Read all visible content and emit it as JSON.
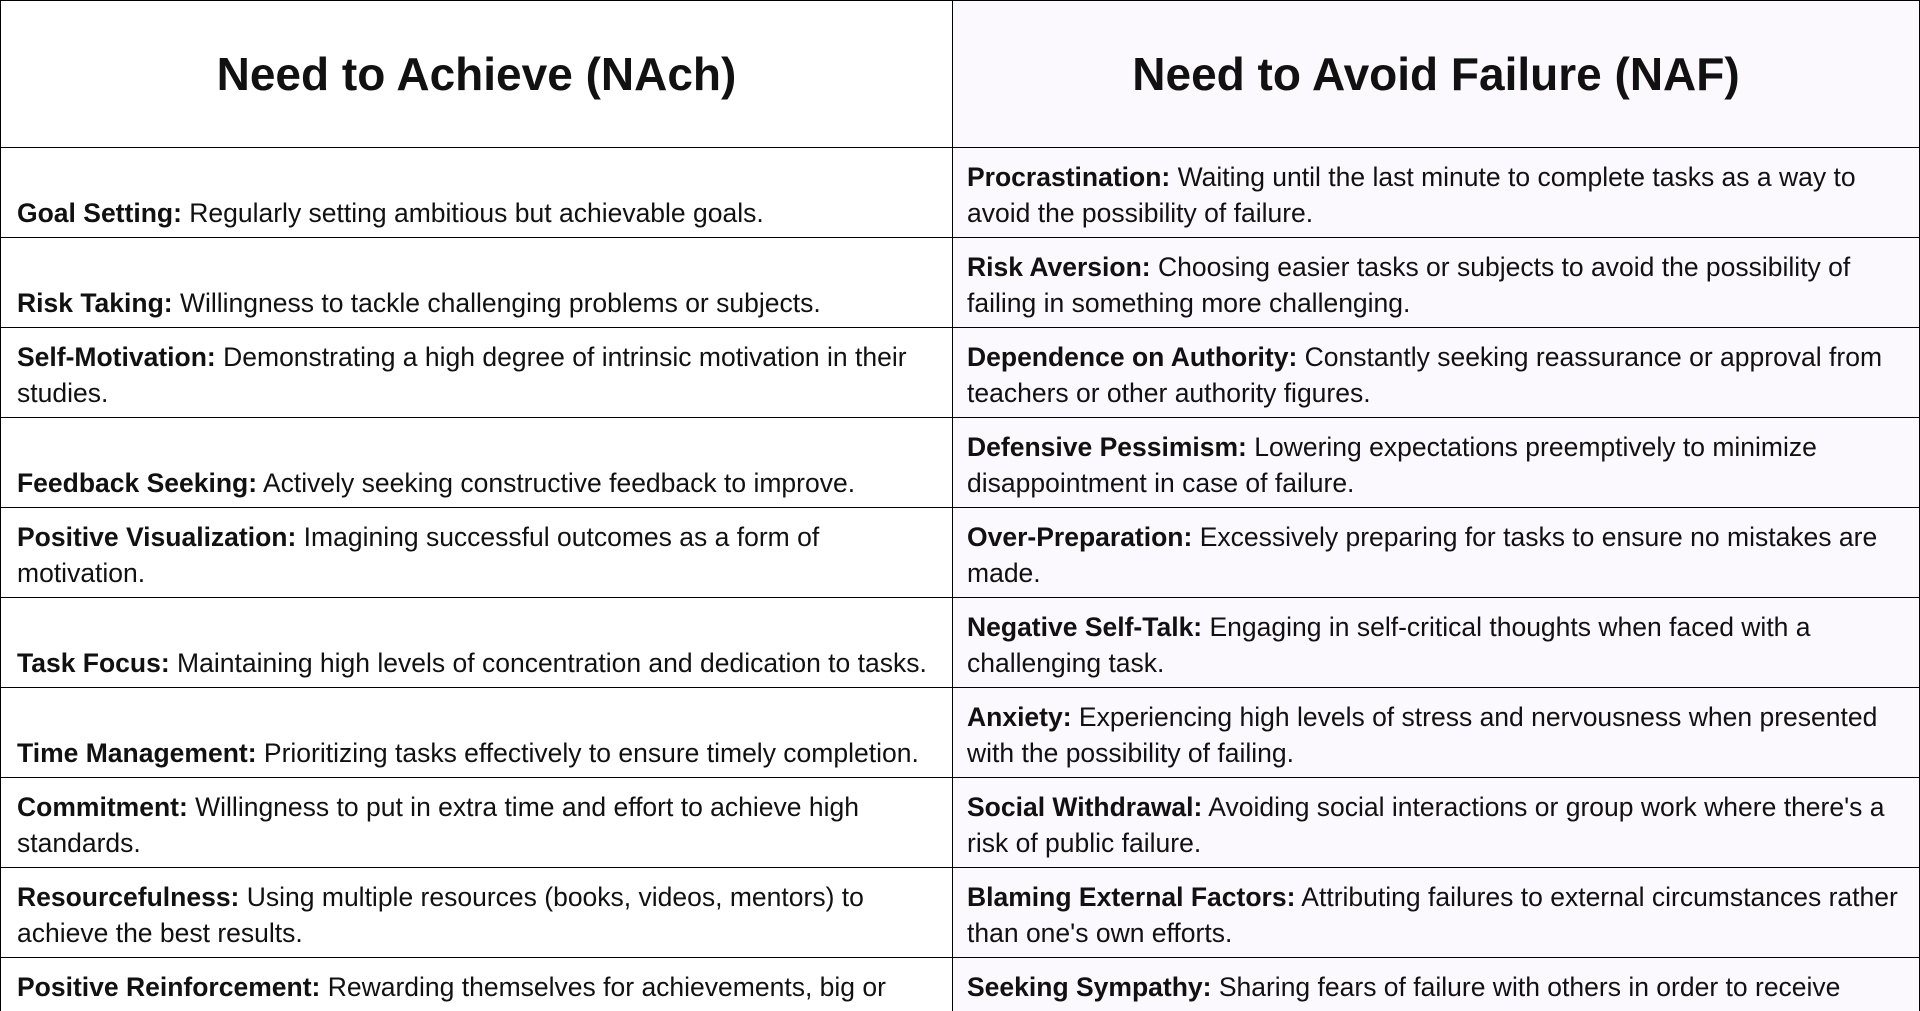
{
  "table": {
    "headers": [
      "Need to Achieve (NAch)",
      "Need to Avoid Failure (NAF)"
    ],
    "rows": [
      {
        "left": {
          "term": "Goal Setting:",
          "desc": " Regularly setting ambitious but achievable goals."
        },
        "right": {
          "term": "Procrastination:",
          "desc": " Waiting until the last minute to complete tasks as a way to avoid the possibility of failure."
        }
      },
      {
        "left": {
          "term": "Risk Taking:",
          "desc": " Willingness to tackle challenging problems or subjects."
        },
        "right": {
          "term": "Risk Aversion:",
          "desc": " Choosing easier tasks or subjects to avoid the possibility of failing in something more challenging."
        }
      },
      {
        "left": {
          "term": "Self-Motivation:",
          "desc": " Demonstrating a high degree of intrinsic motivation in their studies."
        },
        "right": {
          "term": "Dependence on Authority:",
          "desc": " Constantly seeking reassurance or approval from teachers or other authority figures."
        }
      },
      {
        "left": {
          "term": "Feedback Seeking:",
          "desc": " Actively seeking constructive feedback to improve."
        },
        "right": {
          "term": "Defensive Pessimism:",
          "desc": " Lowering expectations preemptively to minimize disappointment in case of failure."
        }
      },
      {
        "left": {
          "term": "Positive Visualization:",
          "desc": " Imagining successful outcomes as a form of motivation."
        },
        "right": {
          "term": "Over-Preparation:",
          "desc": " Excessively preparing for tasks to ensure no mistakes are made."
        }
      },
      {
        "left": {
          "term": "Task Focus:",
          "desc": " Maintaining high levels of concentration and dedication to tasks."
        },
        "right": {
          "term": "Negative Self-Talk:",
          "desc": " Engaging in self-critical thoughts when faced with a challenging task."
        }
      },
      {
        "left": {
          "term": "Time Management:",
          "desc": " Prioritizing tasks effectively to ensure timely completion."
        },
        "right": {
          "term": "Anxiety:",
          "desc": " Experiencing high levels of stress and nervousness when presented with the possibility of failing."
        }
      },
      {
        "left": {
          "term": "Commitment:",
          "desc": " Willingness to put in extra time and effort to achieve high standards."
        },
        "right": {
          "term": "Social Withdrawal:",
          "desc": " Avoiding social interactions or group work where there's a risk of public failure."
        }
      },
      {
        "left": {
          "term": "Resourcefulness:",
          "desc": " Using multiple resources (books, videos, mentors) to achieve the best results."
        },
        "right": {
          "term": "Blaming External Factors:",
          "desc": " Attributing failures to external circumstances rather than one's own efforts."
        }
      },
      {
        "left": {
          "term": "Positive Reinforcement:",
          "desc": " Rewarding themselves for achievements, big or small"
        },
        "right": {
          "term": "Seeking Sympathy:",
          "desc": " Sharing fears of failure with others in order to receive emotional support or sympathy."
        }
      }
    ]
  },
  "colors": {
    "border": "#000000",
    "right_column_bg": "#fbf8fe",
    "text": "#111111"
  }
}
